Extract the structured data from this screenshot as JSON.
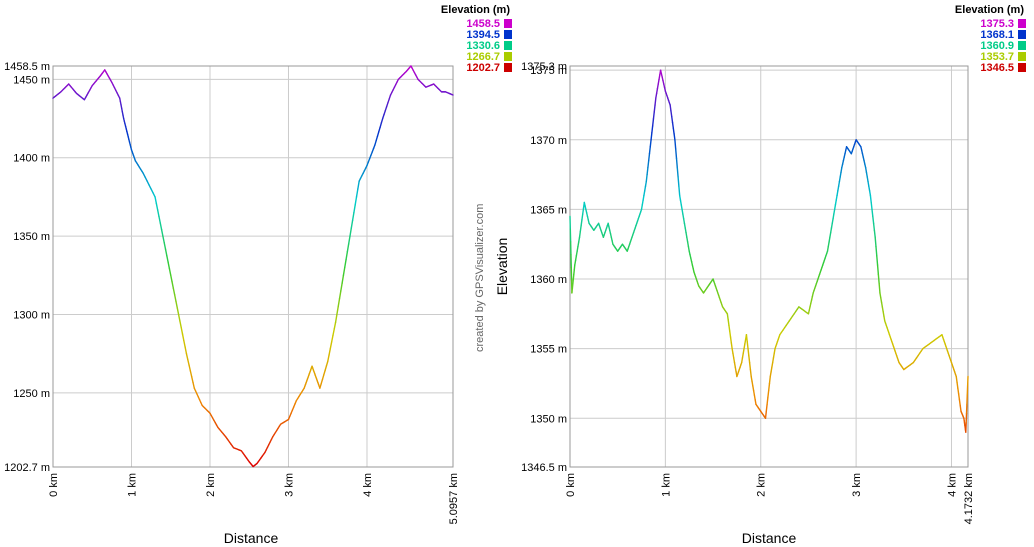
{
  "credit": "created by GPSVisualizer.com",
  "chart_data": [
    {
      "type": "line",
      "xlabel": "Distance",
      "ylabel": "",
      "xlim": [
        0,
        5.0957
      ],
      "ylim": [
        1202.7,
        1458.5
      ],
      "y_ticks": [
        {
          "v": 1458.5,
          "label": "1458.5 m"
        },
        {
          "v": 1450,
          "label": "1450 m"
        },
        {
          "v": 1400,
          "label": "1400 m"
        },
        {
          "v": 1350,
          "label": "1350 m"
        },
        {
          "v": 1300,
          "label": "1300 m"
        },
        {
          "v": 1250,
          "label": "1250 m"
        },
        {
          "v": 1202.7,
          "label": "1202.7 m"
        }
      ],
      "x_ticks": [
        {
          "v": 0,
          "label": "0 km"
        },
        {
          "v": 1,
          "label": "1 km"
        },
        {
          "v": 2,
          "label": "2 km"
        },
        {
          "v": 3,
          "label": "3 km"
        },
        {
          "v": 4,
          "label": "4 km"
        },
        {
          "v": 5.0957,
          "label": "5.0957 km"
        }
      ],
      "legend": {
        "title": "Elevation (m)",
        "entries": [
          {
            "label": "1458.5",
            "color": "#cc00cc"
          },
          {
            "label": "1394.5",
            "color": "#0033cc"
          },
          {
            "label": "1330.6",
            "color": "#00cc88"
          },
          {
            "label": "1266.7",
            "color": "#aacc00"
          },
          {
            "label": "1202.7",
            "color": "#cc0000"
          }
        ]
      },
      "series": [
        {
          "x": [
            0,
            0.1,
            0.2,
            0.3,
            0.4,
            0.5,
            0.6,
            0.66,
            0.75,
            0.85,
            0.9,
            0.95,
            1.0,
            1.05,
            1.15,
            1.3,
            1.4,
            1.5,
            1.6,
            1.7,
            1.8,
            1.9,
            2.0,
            2.1,
            2.2,
            2.3,
            2.4,
            2.5,
            2.55,
            2.6,
            2.7,
            2.8,
            2.9,
            3.0,
            3.1,
            3.2,
            3.25,
            3.3,
            3.35,
            3.4,
            3.5,
            3.6,
            3.7,
            3.8,
            3.9,
            4.0,
            4.1,
            4.2,
            4.3,
            4.4,
            4.5,
            4.56,
            4.65,
            4.75,
            4.85,
            4.95,
            5.0,
            5.0957
          ],
          "y": [
            1438,
            1442,
            1447,
            1441,
            1437,
            1446,
            1452,
            1456,
            1448,
            1438,
            1425,
            1415,
            1405,
            1398,
            1390,
            1375,
            1350,
            1325,
            1300,
            1275,
            1253,
            1242,
            1237,
            1228,
            1222,
            1215,
            1213,
            1206,
            1203,
            1205,
            1212,
            1222,
            1230,
            1233,
            1245,
            1253,
            1260,
            1267,
            1260,
            1253,
            1270,
            1295,
            1325,
            1355,
            1385,
            1395,
            1408,
            1425,
            1440,
            1450,
            1455,
            1458.5,
            1450,
            1445,
            1447,
            1442,
            1442,
            1440
          ]
        }
      ]
    },
    {
      "type": "line",
      "xlabel": "Distance",
      "ylabel": "Elevation",
      "xlim": [
        0,
        4.1732
      ],
      "ylim": [
        1346.5,
        1375.3
      ],
      "y_ticks": [
        {
          "v": 1375.3,
          "label": "1375.3 m"
        },
        {
          "v": 1375,
          "label": "1375 m"
        },
        {
          "v": 1370,
          "label": "1370 m"
        },
        {
          "v": 1365,
          "label": "1365 m"
        },
        {
          "v": 1360,
          "label": "1360 m"
        },
        {
          "v": 1355,
          "label": "1355 m"
        },
        {
          "v": 1350,
          "label": "1350 m"
        },
        {
          "v": 1346.5,
          "label": "1346.5 m"
        }
      ],
      "x_ticks": [
        {
          "v": 0,
          "label": "0 km"
        },
        {
          "v": 1,
          "label": "1 km"
        },
        {
          "v": 2,
          "label": "2 km"
        },
        {
          "v": 3,
          "label": "3 km"
        },
        {
          "v": 4,
          "label": "4 km"
        },
        {
          "v": 4.1732,
          "label": "4.1732 km"
        }
      ],
      "legend": {
        "title": "Elevation (m)",
        "entries": [
          {
            "label": "1375.3",
            "color": "#cc00cc"
          },
          {
            "label": "1368.1",
            "color": "#0033cc"
          },
          {
            "label": "1360.9",
            "color": "#00cc88"
          },
          {
            "label": "1353.7",
            "color": "#aacc00"
          },
          {
            "label": "1346.5",
            "color": "#cc0000"
          }
        ]
      },
      "series": [
        {
          "x": [
            0,
            0.02,
            0.05,
            0.1,
            0.15,
            0.2,
            0.25,
            0.3,
            0.35,
            0.4,
            0.45,
            0.5,
            0.55,
            0.6,
            0.65,
            0.7,
            0.75,
            0.8,
            0.85,
            0.9,
            0.95,
            1.0,
            1.05,
            1.1,
            1.15,
            1.2,
            1.25,
            1.3,
            1.35,
            1.4,
            1.45,
            1.5,
            1.55,
            1.6,
            1.65,
            1.7,
            1.75,
            1.8,
            1.85,
            1.9,
            1.95,
            2.0,
            2.05,
            2.1,
            2.15,
            2.2,
            2.3,
            2.4,
            2.5,
            2.55,
            2.6,
            2.65,
            2.7,
            2.75,
            2.8,
            2.85,
            2.9,
            2.95,
            3.0,
            3.05,
            3.1,
            3.15,
            3.2,
            3.25,
            3.3,
            3.35,
            3.4,
            3.45,
            3.5,
            3.6,
            3.7,
            3.8,
            3.9,
            3.95,
            4.0,
            4.05,
            4.1,
            4.13,
            4.15,
            4.1732
          ],
          "y": [
            1364.5,
            1359,
            1361,
            1363,
            1365.5,
            1364,
            1363.5,
            1364,
            1363,
            1364,
            1362.5,
            1362,
            1362.5,
            1362,
            1363,
            1364,
            1365,
            1367,
            1370,
            1373,
            1375,
            1373.5,
            1372.5,
            1370,
            1366,
            1364,
            1362,
            1360.5,
            1359.5,
            1359,
            1359.5,
            1360,
            1359,
            1358,
            1357.5,
            1355,
            1353,
            1354,
            1356,
            1353,
            1351,
            1350.5,
            1350,
            1353,
            1355,
            1356,
            1357,
            1358,
            1357.5,
            1359,
            1360,
            1361,
            1362,
            1364,
            1366,
            1368,
            1369.5,
            1369,
            1370,
            1369.5,
            1368,
            1366,
            1363,
            1359,
            1357,
            1356,
            1355,
            1354,
            1353.5,
            1354,
            1355,
            1355.5,
            1356,
            1355,
            1354,
            1353,
            1350.5,
            1350,
            1349,
            1353
          ]
        }
      ]
    }
  ]
}
